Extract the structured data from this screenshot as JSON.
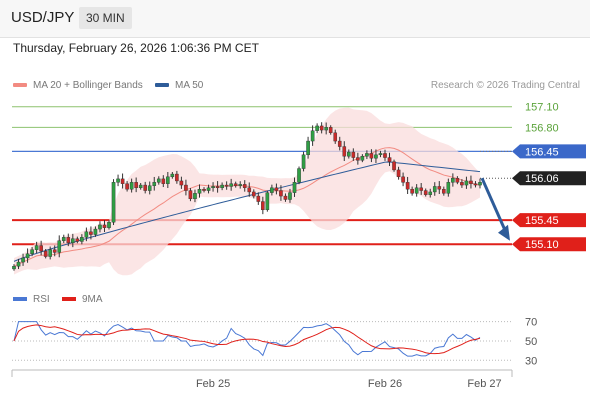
{
  "header": {
    "pair": "USD/JPY",
    "timeframe": "30 MIN"
  },
  "datetime": "Thursday, February 26, 2026 1:06:36 PM CET",
  "legend": {
    "bb": {
      "label": "MA 20 + Bollinger Bands",
      "color": "#f28b82"
    },
    "ma50": {
      "label": "MA 50",
      "color": "#2e5c99"
    },
    "credit": "Research © 2026 Trading Central"
  },
  "rsi_legend": {
    "rsi": {
      "label": "RSI",
      "color": "#4a78d4"
    },
    "ma9": {
      "label": "9MA",
      "color": "#e0201a"
    }
  },
  "chart_data": {
    "type": "candlestick",
    "instrument": "USD/JPY",
    "interval": "30 MIN",
    "price_range": [
      154.55,
      157.27
    ],
    "levels": [
      {
        "value": 157.1,
        "label": "157.10",
        "kind": "resistance-minor",
        "color": "#8dc26f"
      },
      {
        "value": 156.8,
        "label": "156.80",
        "kind": "resistance-minor",
        "color": "#8dc26f"
      },
      {
        "value": 156.45,
        "label": "156.45",
        "kind": "pivot",
        "color": "#4a78d4"
      },
      {
        "value": 155.45,
        "label": "155.45",
        "kind": "support",
        "color": "#e0201a"
      },
      {
        "value": 155.1,
        "label": "155.10",
        "kind": "support",
        "color": "#e0201a"
      }
    ],
    "current_price": {
      "value": 156.06,
      "label": "156.06"
    },
    "x_ticks": [
      {
        "label": "Feb 25",
        "index": 44
      },
      {
        "label": "Feb 26",
        "index": 82
      },
      {
        "label": "Feb 27",
        "index": 104
      }
    ],
    "closes": [
      154.78,
      154.84,
      154.9,
      154.96,
      155.02,
      155.08,
      155.0,
      154.92,
      155.02,
      154.98,
      155.15,
      155.2,
      155.12,
      155.18,
      155.14,
      155.2,
      155.28,
      155.24,
      155.32,
      155.38,
      155.34,
      155.42,
      156.0,
      156.05,
      155.98,
      155.9,
      156.0,
      155.92,
      155.96,
      155.88,
      155.95,
      156.0,
      156.05,
      155.98,
      156.08,
      156.12,
      156.02,
      155.96,
      155.88,
      155.76,
      155.84,
      155.9,
      155.88,
      155.92,
      155.94,
      155.92,
      155.96,
      155.94,
      155.98,
      155.95,
      155.97,
      155.92,
      155.86,
      155.8,
      155.72,
      155.6,
      155.85,
      155.92,
      155.88,
      155.8,
      155.75,
      155.85,
      156.0,
      156.2,
      156.4,
      156.6,
      156.75,
      156.82,
      156.76,
      156.8,
      156.72,
      156.6,
      156.52,
      156.38,
      156.44,
      156.36,
      156.32,
      156.38,
      156.42,
      156.35,
      156.4,
      156.42,
      156.36,
      156.3,
      156.18,
      156.08,
      156.0,
      155.9,
      155.84,
      155.92,
      155.88,
      155.82,
      155.86,
      155.94,
      155.9,
      155.84,
      156.0,
      156.06,
      156.0,
      155.96,
      156.02,
      155.98,
      155.96,
      156.0
    ],
    "ma50_range": [
      154.85,
      156.3
    ],
    "rsi": {
      "levels": [
        70,
        50,
        30
      ],
      "y_range": [
        22,
        80
      ],
      "series": [
        "RSI",
        "9MA"
      ]
    }
  }
}
